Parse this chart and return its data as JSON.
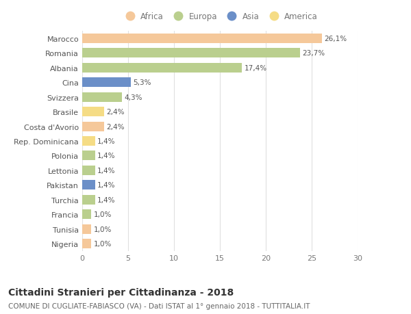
{
  "countries": [
    "Marocco",
    "Romania",
    "Albania",
    "Cina",
    "Svizzera",
    "Brasile",
    "Costa d'Avorio",
    "Rep. Dominicana",
    "Polonia",
    "Lettonia",
    "Pakistan",
    "Turchia",
    "Francia",
    "Tunisia",
    "Nigeria"
  ],
  "values": [
    26.1,
    23.7,
    17.4,
    5.3,
    4.3,
    2.4,
    2.4,
    1.4,
    1.4,
    1.4,
    1.4,
    1.4,
    1.0,
    1.0,
    1.0
  ],
  "labels": [
    "26,1%",
    "23,7%",
    "17,4%",
    "5,3%",
    "4,3%",
    "2,4%",
    "2,4%",
    "1,4%",
    "1,4%",
    "1,4%",
    "1,4%",
    "1,4%",
    "1,0%",
    "1,0%",
    "1,0%"
  ],
  "bar_colors": [
    "#F5C89A",
    "#BACF8E",
    "#BACF8E",
    "#6B8FC8",
    "#BACF8E",
    "#F5DC85",
    "#F5C89A",
    "#F5DC85",
    "#BACF8E",
    "#BACF8E",
    "#6B8FC8",
    "#BACF8E",
    "#BACF8E",
    "#F5C89A",
    "#F5C89A"
  ],
  "xlim": [
    0,
    30
  ],
  "xticks": [
    0,
    5,
    10,
    15,
    20,
    25,
    30
  ],
  "title": "Cittadini Stranieri per Cittadinanza - 2018",
  "subtitle": "COMUNE DI CUGLIATE-FABIASCO (VA) - Dati ISTAT al 1° gennaio 2018 - TUTTITALIA.IT",
  "legend_labels": [
    "Africa",
    "Europa",
    "Asia",
    "America"
  ],
  "legend_colors": [
    "#F5C89A",
    "#BACF8E",
    "#6B8FC8",
    "#F5DC85"
  ],
  "bg_color": "#ffffff",
  "grid_color": "#e0e0e0",
  "bar_height": 0.65
}
